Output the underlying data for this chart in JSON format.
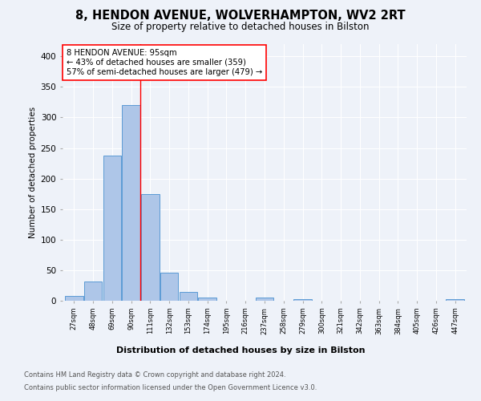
{
  "title_line1": "8, HENDON AVENUE, WOLVERHAMPTON, WV2 2RT",
  "title_line2": "Size of property relative to detached houses in Bilston",
  "xlabel": "Distribution of detached houses by size in Bilston",
  "ylabel": "Number of detached properties",
  "bar_color": "#aec6e8",
  "bar_edge_color": "#5b9bd5",
  "categories": [
    "27sqm",
    "48sqm",
    "69sqm",
    "90sqm",
    "111sqm",
    "132sqm",
    "153sqm",
    "174sqm",
    "195sqm",
    "216sqm",
    "237sqm",
    "258sqm",
    "279sqm",
    "300sqm",
    "321sqm",
    "342sqm",
    "363sqm",
    "384sqm",
    "405sqm",
    "426sqm",
    "447sqm"
  ],
  "values": [
    8,
    32,
    237,
    320,
    175,
    46,
    15,
    5,
    0,
    0,
    5,
    0,
    3,
    0,
    0,
    0,
    0,
    0,
    0,
    0,
    3
  ],
  "red_line_x": 3.5,
  "annotation_text": "8 HENDON AVENUE: 95sqm\n← 43% of detached houses are smaller (359)\n57% of semi-detached houses are larger (479) →",
  "ylim": [
    0,
    420
  ],
  "yticks": [
    0,
    50,
    100,
    150,
    200,
    250,
    300,
    350,
    400
  ],
  "footer1": "Contains HM Land Registry data © Crown copyright and database right 2024.",
  "footer2": "Contains public sector information licensed under the Open Government Licence v3.0.",
  "background_color": "#eef2f9",
  "grid_color": "#ffffff"
}
